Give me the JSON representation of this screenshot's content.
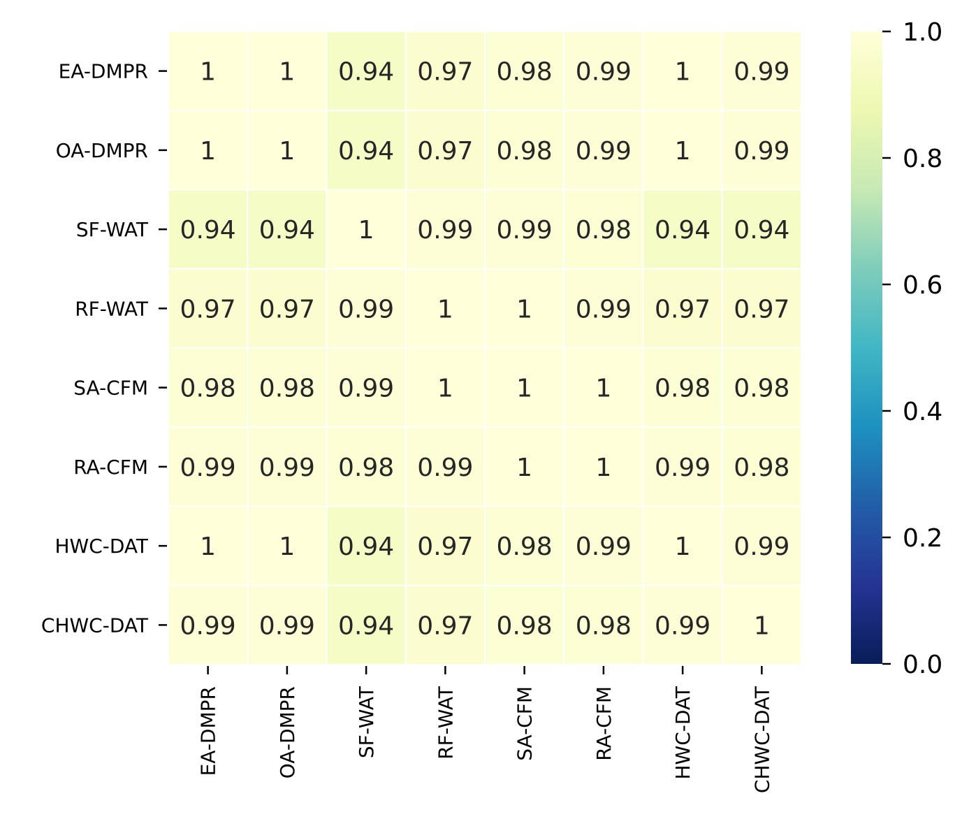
{
  "chart_data": {
    "type": "heatmap",
    "title": "",
    "xlabel": "",
    "ylabel": "",
    "colormap": "YlGnBu",
    "rows": [
      "EA-DMPR",
      "OA-DMPR",
      "SF-WAT",
      "RF-WAT",
      "SA-CFM",
      "RA-CFM",
      "HWC-DAT",
      "CHWC-DAT"
    ],
    "columns": [
      "EA-DMPR",
      "OA-DMPR",
      "SF-WAT",
      "RF-WAT",
      "SA-CFM",
      "RA-CFM",
      "HWC-DAT",
      "CHWC-DAT"
    ],
    "values": [
      [
        1,
        1,
        0.94,
        0.97,
        0.98,
        0.99,
        1,
        0.99
      ],
      [
        1,
        1,
        0.94,
        0.97,
        0.98,
        0.99,
        1,
        0.99
      ],
      [
        0.94,
        0.94,
        1,
        0.99,
        0.99,
        0.98,
        0.94,
        0.94
      ],
      [
        0.97,
        0.97,
        0.99,
        1,
        1,
        0.99,
        0.97,
        0.97
      ],
      [
        0.98,
        0.98,
        0.99,
        1,
        1,
        1,
        0.98,
        0.98
      ],
      [
        0.99,
        0.99,
        0.98,
        0.99,
        1,
        1,
        0.99,
        0.98
      ],
      [
        1,
        1,
        0.94,
        0.97,
        0.98,
        0.99,
        1,
        0.99
      ],
      [
        0.99,
        0.99,
        0.94,
        0.97,
        0.98,
        0.98,
        0.99,
        1
      ]
    ],
    "vmin": 0,
    "vmax": 1,
    "colorbar_ticks": [
      "0.0",
      "0.2",
      "0.4",
      "0.6",
      "0.8",
      "1.0"
    ],
    "colorbar_tick_values": [
      0,
      0.2,
      0.4,
      0.6,
      0.8,
      1.0
    ],
    "grid": false,
    "annotated": true
  }
}
